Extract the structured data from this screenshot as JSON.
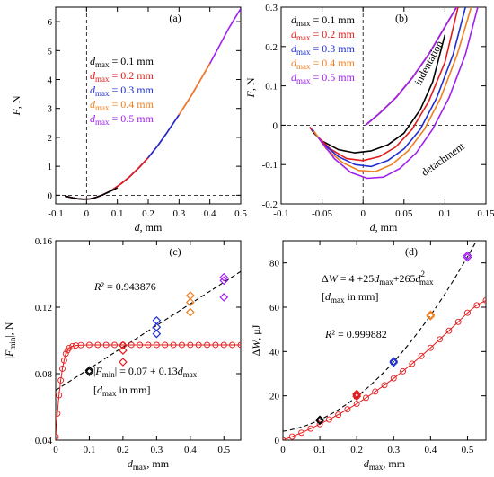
{
  "colors": {
    "c01": "#000000",
    "c02": "#e31b1b",
    "c03": "#1f2fd6",
    "c04": "#f07f1f",
    "c05": "#a020f0",
    "fit": "#e31b1b",
    "axis": "#000000"
  },
  "chart_data": [
    {
      "id": "a",
      "type": "line",
      "panel_label": "(a)",
      "xlabel": "d, mm",
      "ylabel": "F, N",
      "xlim": [
        -0.1,
        0.5
      ],
      "ylim": [
        -0.3,
        6.5
      ],
      "xticks": [
        -0.1,
        0,
        0.1,
        0.2,
        0.3,
        0.4,
        0.5
      ],
      "xtick_labels": [
        "-0.1",
        "0",
        "0.1",
        "0.2",
        "0.3",
        "0.4",
        "0.5"
      ],
      "yticks": [
        0,
        1,
        2,
        3,
        4,
        5,
        6
      ],
      "ytick_labels": [
        "0",
        "1",
        "2",
        "3",
        "4",
        "5",
        "6"
      ],
      "legend_position": "center-right",
      "series": [
        {
          "name": "dmax = 0.1 mm",
          "legend_main": "d",
          "legend_sub": "max",
          "legend_rest": " = 0.1 mm",
          "color_key": "c01",
          "x": [
            -0.07,
            -0.05,
            -0.03,
            -0.01,
            0.01,
            0.03,
            0.05,
            0.07,
            0.09,
            0.1
          ],
          "y": [
            -0.03,
            -0.08,
            -0.12,
            -0.14,
            -0.13,
            -0.08,
            0.0,
            0.1,
            0.2,
            0.26
          ]
        },
        {
          "name": "dmax = 0.2 mm",
          "legend_main": "d",
          "legend_sub": "max",
          "legend_rest": " = 0.2 mm",
          "color_key": "c02",
          "x": [
            -0.07,
            -0.05,
            -0.03,
            -0.01,
            0.01,
            0.03,
            0.05,
            0.08,
            0.11,
            0.14,
            0.17,
            0.2
          ],
          "y": [
            -0.03,
            -0.08,
            -0.12,
            -0.14,
            -0.13,
            -0.08,
            0.0,
            0.16,
            0.38,
            0.64,
            0.95,
            1.3
          ]
        },
        {
          "name": "dmax = 0.3 mm",
          "legend_main": "d",
          "legend_sub": "max",
          "legend_rest": " = 0.3 mm",
          "color_key": "c03",
          "x": [
            -0.07,
            -0.05,
            -0.03,
            -0.01,
            0.01,
            0.03,
            0.05,
            0.08,
            0.11,
            0.14,
            0.17,
            0.2,
            0.23,
            0.26,
            0.3
          ],
          "y": [
            -0.03,
            -0.08,
            -0.12,
            -0.14,
            -0.13,
            -0.08,
            0.0,
            0.16,
            0.38,
            0.64,
            0.95,
            1.3,
            1.7,
            2.15,
            2.78
          ]
        },
        {
          "name": "dmax = 0.4 mm",
          "legend_main": "d",
          "legend_sub": "max",
          "legend_rest": " = 0.4 mm",
          "color_key": "c04",
          "x": [
            -0.07,
            -0.05,
            -0.03,
            -0.01,
            0.01,
            0.03,
            0.05,
            0.08,
            0.11,
            0.14,
            0.17,
            0.2,
            0.23,
            0.26,
            0.3,
            0.34,
            0.37,
            0.4
          ],
          "y": [
            -0.03,
            -0.08,
            -0.12,
            -0.14,
            -0.13,
            -0.08,
            0.0,
            0.16,
            0.38,
            0.64,
            0.95,
            1.3,
            1.7,
            2.15,
            2.78,
            3.45,
            4.0,
            4.55
          ]
        },
        {
          "name": "dmax = 0.5 mm",
          "legend_main": "d",
          "legend_sub": "max",
          "legend_rest": " = 0.5 mm",
          "color_key": "c05",
          "x": [
            -0.07,
            -0.05,
            -0.03,
            -0.01,
            0.01,
            0.03,
            0.05,
            0.08,
            0.11,
            0.14,
            0.17,
            0.2,
            0.23,
            0.26,
            0.3,
            0.34,
            0.37,
            0.4,
            0.43,
            0.46,
            0.5
          ],
          "y": [
            -0.03,
            -0.08,
            -0.12,
            -0.14,
            -0.13,
            -0.08,
            0.0,
            0.16,
            0.38,
            0.64,
            0.95,
            1.3,
            1.7,
            2.15,
            2.78,
            3.45,
            4.0,
            4.55,
            5.15,
            5.75,
            6.45
          ]
        }
      ]
    },
    {
      "id": "b",
      "type": "line",
      "panel_label": "(b)",
      "xlabel": "d, mm",
      "ylabel": "F, N",
      "xlim": [
        -0.1,
        0.15
      ],
      "ylim": [
        -0.2,
        0.3
      ],
      "xticks": [
        -0.1,
        -0.05,
        0,
        0.05,
        0.1,
        0.15
      ],
      "xtick_labels": [
        "-0.1",
        "-0.05",
        "0",
        "0.05",
        "0.1",
        "0.15"
      ],
      "yticks": [
        -0.2,
        -0.1,
        0,
        0.1,
        0.2,
        0.3
      ],
      "ytick_labels": [
        "-0.2",
        "-0.1",
        "0",
        "0.1",
        "0.2",
        "0.3"
      ],
      "legend_position": "top-left",
      "annotations": [
        "indentation",
        "detachment"
      ],
      "series": [
        {
          "name": "dmax = 0.1 mm",
          "legend_main": "d",
          "legend_sub": "max",
          "legend_rest": " = 0.1 mm",
          "color_key": "c01",
          "indent_x": [
            0.003,
            0.02,
            0.04,
            0.06,
            0.08,
            0.1
          ],
          "indent_y": [
            0.0,
            0.03,
            0.07,
            0.12,
            0.18,
            0.25
          ],
          "detach_x": [
            0.1,
            0.085,
            0.07,
            0.05,
            0.03,
            0.01,
            -0.01,
            -0.03,
            -0.05,
            -0.06,
            -0.065
          ],
          "detach_y": [
            0.23,
            0.11,
            0.04,
            -0.02,
            -0.05,
            -0.065,
            -0.07,
            -0.062,
            -0.04,
            -0.02,
            -0.005
          ]
        },
        {
          "name": "dmax = 0.2 mm",
          "legend_main": "d",
          "legend_sub": "max",
          "legend_rest": " = 0.2 mm",
          "color_key": "c02",
          "indent_x": [
            0.003,
            0.02,
            0.04,
            0.06,
            0.08,
            0.1,
            0.12
          ],
          "indent_y": [
            0.0,
            0.03,
            0.07,
            0.12,
            0.18,
            0.25,
            0.32
          ],
          "detach_x": [
            0.116,
            0.1,
            0.08,
            0.06,
            0.04,
            0.02,
            0.0,
            -0.02,
            -0.04,
            -0.055,
            -0.065
          ],
          "detach_y": [
            0.3,
            0.16,
            0.06,
            -0.01,
            -0.055,
            -0.08,
            -0.09,
            -0.085,
            -0.06,
            -0.03,
            -0.005
          ]
        },
        {
          "name": "dmax = 0.3 mm",
          "legend_main": "d",
          "legend_sub": "max",
          "legend_rest": " = 0.3 mm",
          "color_key": "c03",
          "indent_x": [
            0.003,
            0.02,
            0.04,
            0.06,
            0.08,
            0.1,
            0.12
          ],
          "indent_y": [
            0.0,
            0.03,
            0.07,
            0.12,
            0.18,
            0.25,
            0.32
          ],
          "detach_x": [
            0.125,
            0.11,
            0.09,
            0.07,
            0.05,
            0.03,
            0.01,
            -0.01,
            -0.03,
            -0.05,
            -0.062
          ],
          "detach_y": [
            0.3,
            0.18,
            0.07,
            -0.01,
            -0.06,
            -0.09,
            -0.105,
            -0.1,
            -0.08,
            -0.045,
            -0.01
          ]
        },
        {
          "name": "dmax = 0.4 mm",
          "legend_main": "d",
          "legend_sub": "max",
          "legend_rest": " = 0.4 mm",
          "color_key": "c04",
          "indent_x": [
            0.003,
            0.02,
            0.04,
            0.06,
            0.08,
            0.1,
            0.12
          ],
          "indent_y": [
            0.0,
            0.03,
            0.07,
            0.12,
            0.18,
            0.25,
            0.32
          ],
          "detach_x": [
            0.132,
            0.115,
            0.095,
            0.075,
            0.055,
            0.035,
            0.015,
            -0.005,
            -0.025,
            -0.045,
            -0.06
          ],
          "detach_y": [
            0.3,
            0.18,
            0.07,
            -0.01,
            -0.065,
            -0.1,
            -0.118,
            -0.115,
            -0.095,
            -0.06,
            -0.015
          ]
        },
        {
          "name": "dmax = 0.5 mm",
          "legend_main": "d",
          "legend_sub": "max",
          "legend_rest": " = 0.5 mm",
          "color_key": "c05",
          "indent_x": [
            0.003,
            0.02,
            0.04,
            0.06,
            0.08,
            0.1,
            0.12
          ],
          "indent_y": [
            0.0,
            0.03,
            0.07,
            0.12,
            0.18,
            0.25,
            0.32
          ],
          "detach_x": [
            0.14,
            0.125,
            0.105,
            0.085,
            0.065,
            0.045,
            0.025,
            0.005,
            -0.015,
            -0.035,
            -0.055
          ],
          "detach_y": [
            0.3,
            0.18,
            0.07,
            -0.01,
            -0.07,
            -0.11,
            -0.132,
            -0.135,
            -0.12,
            -0.085,
            -0.03
          ]
        }
      ]
    },
    {
      "id": "c",
      "type": "scatter",
      "panel_label": "(c)",
      "xlabel_main": "d",
      "xlabel_sub": "max",
      "xlabel_rest": ", mm",
      "ylabel_pre": "|F",
      "ylabel_sub": "min",
      "ylabel_post": "|, N",
      "xlim": [
        0,
        0.55
      ],
      "ylim": [
        0.04,
        0.16
      ],
      "xticks": [
        0,
        0.1,
        0.2,
        0.3,
        0.4,
        0.5
      ],
      "xtick_labels": [
        "0",
        "0.1",
        "0.2",
        "0.3",
        "0.4",
        "0.5"
      ],
      "yticks": [
        0.04,
        0.08,
        0.12,
        0.16
      ],
      "ytick_labels": [
        "0.04",
        "0.08",
        "0.12",
        "0.16"
      ],
      "r2_text": "R² = 0.943876",
      "eq_line1": "|Fmin| = 0.07 + 0.13dmax",
      "eq_line2": "[dmax in mm]",
      "fit_intercept": 0.07,
      "fit_slope": 0.13,
      "points": [
        {
          "x": 0.1,
          "y": 0.082,
          "color_key": "c01"
        },
        {
          "x": 0.1,
          "y": 0.081,
          "color_key": "c01"
        },
        {
          "x": 0.2,
          "y": 0.094,
          "color_key": "c02"
        },
        {
          "x": 0.2,
          "y": 0.097,
          "color_key": "c02"
        },
        {
          "x": 0.2,
          "y": 0.087,
          "color_key": "c02"
        },
        {
          "x": 0.3,
          "y": 0.104,
          "color_key": "c03"
        },
        {
          "x": 0.3,
          "y": 0.108,
          "color_key": "c03"
        },
        {
          "x": 0.3,
          "y": 0.112,
          "color_key": "c03"
        },
        {
          "x": 0.4,
          "y": 0.117,
          "color_key": "c04"
        },
        {
          "x": 0.4,
          "y": 0.123,
          "color_key": "c04"
        },
        {
          "x": 0.4,
          "y": 0.127,
          "color_key": "c04"
        },
        {
          "x": 0.5,
          "y": 0.126,
          "color_key": "c05"
        },
        {
          "x": 0.5,
          "y": 0.136,
          "color_key": "c05"
        },
        {
          "x": 0.5,
          "y": 0.138,
          "color_key": "c05"
        }
      ],
      "model_curve": {
        "x": [
          0.0,
          0.005,
          0.01,
          0.015,
          0.02,
          0.025,
          0.03,
          0.035,
          0.04,
          0.05,
          0.06,
          0.075,
          0.1,
          0.125,
          0.15,
          0.175,
          0.2,
          0.225,
          0.25,
          0.275,
          0.3,
          0.325,
          0.35,
          0.375,
          0.4,
          0.425,
          0.45,
          0.475,
          0.5,
          0.525,
          0.55
        ],
        "y": [
          0.042,
          0.056,
          0.067,
          0.076,
          0.083,
          0.088,
          0.092,
          0.094,
          0.0955,
          0.0965,
          0.097,
          0.0972,
          0.0973,
          0.0973,
          0.0973,
          0.0973,
          0.0973,
          0.0973,
          0.0973,
          0.0973,
          0.0973,
          0.0973,
          0.0973,
          0.0973,
          0.0973,
          0.0973,
          0.0973,
          0.0973,
          0.0973,
          0.0973,
          0.0973
        ]
      }
    },
    {
      "id": "d",
      "type": "scatter",
      "panel_label": "(d)",
      "xlabel_main": "d",
      "xlabel_sub": "max",
      "xlabel_rest": ", mm",
      "ylabel_main": "ΔW",
      "ylabel_rest": ", μJ",
      "xlim": [
        0,
        0.55
      ],
      "ylim": [
        0,
        90
      ],
      "xticks": [
        0,
        0.1,
        0.2,
        0.3,
        0.4,
        0.5
      ],
      "xtick_labels": [
        "0",
        "0.1",
        "0.2",
        "0.3",
        "0.4",
        "0.5"
      ],
      "yticks": [
        0,
        20,
        40,
        60,
        80
      ],
      "ytick_labels": [
        "0",
        "20",
        "40",
        "60",
        "80"
      ],
      "r2_text": "R² = 0.999882",
      "eq_line1": "ΔW = 4 + 25dmax + 265dmax²",
      "eq_line2": "[dmax in mm]",
      "fit_c0": 4,
      "fit_c1": 25,
      "fit_c2": 265,
      "points": [
        {
          "x": 0.1,
          "y": 9.2,
          "color_key": "c01"
        },
        {
          "x": 0.1,
          "y": 8.8,
          "color_key": "c01"
        },
        {
          "x": 0.2,
          "y": 20.3,
          "color_key": "c02"
        },
        {
          "x": 0.2,
          "y": 19.7,
          "color_key": "c02"
        },
        {
          "x": 0.2,
          "y": 20.9,
          "color_key": "c02"
        },
        {
          "x": 0.3,
          "y": 35.0,
          "color_key": "c03"
        },
        {
          "x": 0.3,
          "y": 35.6,
          "color_key": "c03"
        },
        {
          "x": 0.4,
          "y": 56.0,
          "color_key": "c04"
        },
        {
          "x": 0.4,
          "y": 56.6,
          "color_key": "c04"
        },
        {
          "x": 0.5,
          "y": 82.5,
          "color_key": "c05"
        },
        {
          "x": 0.5,
          "y": 83.3,
          "color_key": "c05"
        }
      ],
      "model_curve": {
        "x": [
          0.0,
          0.025,
          0.05,
          0.075,
          0.1,
          0.125,
          0.15,
          0.175,
          0.2,
          0.225,
          0.25,
          0.275,
          0.3,
          0.325,
          0.35,
          0.375,
          0.4,
          0.425,
          0.45,
          0.475,
          0.5,
          0.525,
          0.55
        ],
        "y": [
          0.0,
          1.6,
          3.3,
          5.2,
          7.2,
          9.3,
          11.5,
          13.9,
          16.4,
          19.1,
          21.9,
          24.8,
          27.9,
          31.1,
          34.5,
          38.0,
          41.7,
          45.5,
          49.4,
          53.4,
          57.5,
          60.9,
          63.1
        ]
      }
    }
  ]
}
